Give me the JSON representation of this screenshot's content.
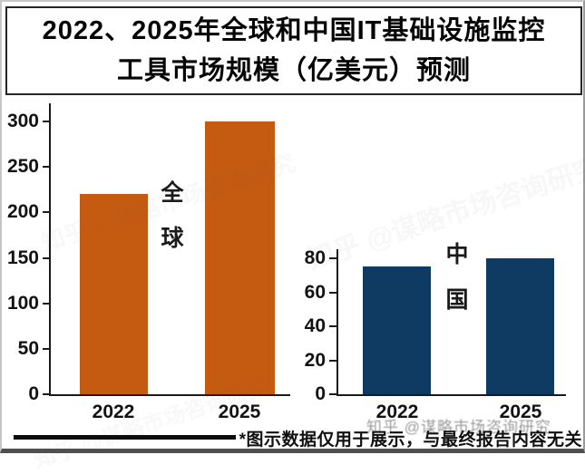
{
  "page": {
    "title_line1": "2022、2025年全球和中国IT基础设施监控",
    "title_line2": "工具市场规模（亿美元）预测"
  },
  "chart_data": [
    {
      "type": "bar",
      "title": "全球",
      "region_label": "全球",
      "region_label_chars": [
        "全",
        "球"
      ],
      "categories": [
        "2022",
        "2025"
      ],
      "values": [
        220,
        300
      ],
      "y_ticks": [
        300,
        250,
        200,
        150,
        100,
        50,
        0
      ],
      "ylim": [
        0,
        300
      ],
      "xlabel": "",
      "ylabel": "",
      "grid": false,
      "legend": false,
      "bar_color": "#C55A11"
    },
    {
      "type": "bar",
      "title": "中国",
      "region_label": "中国",
      "region_label_chars": [
        "中",
        "国"
      ],
      "categories": [
        "2022",
        "2025"
      ],
      "values": [
        75,
        80
      ],
      "y_ticks": [
        80,
        60,
        40,
        20,
        0
      ],
      "ylim": [
        0,
        80
      ],
      "xlabel": "",
      "ylabel": "",
      "grid": false,
      "legend": false,
      "bar_color": "#0F3A62"
    }
  ],
  "footer": {
    "disclaimer": "*图示数据仅用于展示，与最终报告内容无关",
    "watermark": "知乎 @谋略市场咨询研究"
  }
}
